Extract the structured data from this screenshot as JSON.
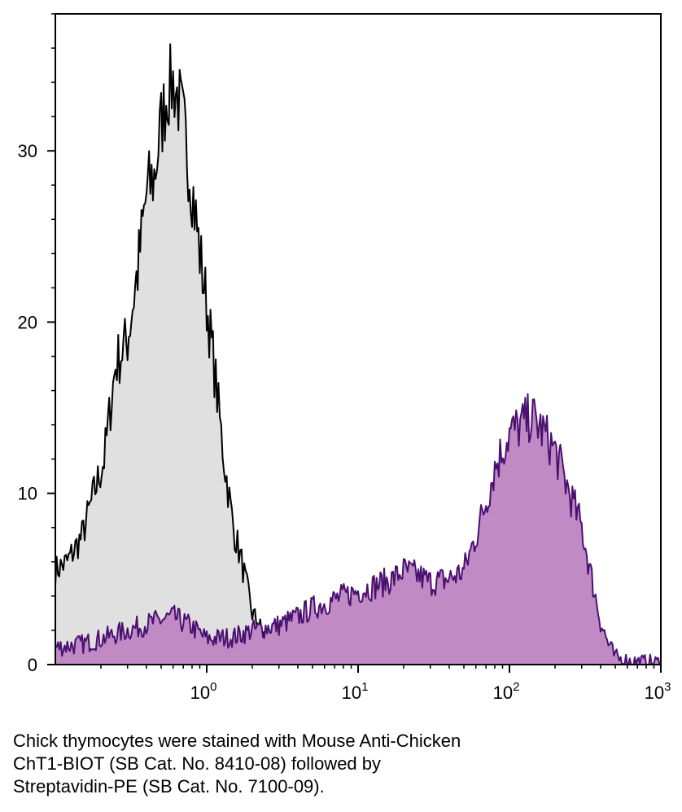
{
  "chart_data": {
    "type": "area",
    "title": "",
    "xlabel": "",
    "ylabel": "",
    "x_scale": "log",
    "xlim": [
      0.1,
      1000
    ],
    "ylim": [
      0,
      38
    ],
    "grid": false,
    "x_ticks": [
      {
        "value": 1,
        "base": "10",
        "exp": "0"
      },
      {
        "value": 10,
        "base": "10",
        "exp": "1"
      },
      {
        "value": 100,
        "base": "10",
        "exp": "2"
      },
      {
        "value": 1000,
        "base": "10",
        "exp": "3"
      }
    ],
    "y_ticks": [
      {
        "value": 0,
        "label": "0"
      },
      {
        "value": 10,
        "label": "10"
      },
      {
        "value": 20,
        "label": "20"
      },
      {
        "value": 30,
        "label": "30"
      }
    ],
    "series": [
      {
        "fill": "#e0e0e0",
        "stroke": "#000000",
        "x": [
          0.1,
          0.12,
          0.15,
          0.18,
          0.21,
          0.25,
          0.3,
          0.35,
          0.4,
          0.45,
          0.5,
          0.55,
          0.6,
          0.65,
          0.7,
          0.8,
          0.9,
          1.0,
          1.1,
          1.3,
          1.5,
          1.7,
          2.0,
          2.3,
          2.7,
          3.0,
          3.5,
          4.0
        ],
        "y": [
          5.5,
          6.0,
          7.5,
          10.0,
          12.0,
          17.5,
          19.0,
          23.0,
          27.5,
          28.5,
          31.5,
          33.5,
          34.0,
          33.0,
          31.5,
          28.0,
          24.0,
          21.0,
          18.0,
          12.0,
          8.0,
          6.0,
          3.0,
          2.0,
          1.0,
          0.5,
          0.2,
          0.0
        ]
      },
      {
        "fill": "#c08bc5",
        "stroke": "#4a1070",
        "x": [
          0.1,
          0.15,
          0.2,
          0.3,
          0.45,
          0.6,
          0.8,
          1.0,
          1.5,
          2.0,
          3.0,
          4.0,
          5.0,
          7.0,
          10.0,
          13.0,
          17.0,
          20.0,
          25.0,
          30.0,
          40.0,
          50.0,
          60.0,
          70.0,
          80.0,
          100.0,
          120.0,
          140.0,
          170.0,
          200.0,
          250.0,
          300.0,
          350.0,
          400.0,
          450.0,
          500.0,
          600.0,
          800.0,
          1000.0
        ],
        "y": [
          1.0,
          1.2,
          1.5,
          2.0,
          2.5,
          2.8,
          2.2,
          1.5,
          1.6,
          2.0,
          2.3,
          2.8,
          3.3,
          3.8,
          4.3,
          4.6,
          5.0,
          5.5,
          5.2,
          4.8,
          5.0,
          5.5,
          7.5,
          9.5,
          11.5,
          13.5,
          14.0,
          14.5,
          13.5,
          12.5,
          10.0,
          8.0,
          5.0,
          2.5,
          1.2,
          0.4,
          0.2,
          0.1,
          0.1
        ]
      }
    ]
  },
  "caption": {
    "line1": "Chick thymocytes were stained with Mouse Anti-Chicken",
    "line2": "ChT1-BIOT (SB Cat. No. 8410-08) followed by",
    "line3": "Streptavidin-PE (SB Cat. No. 7100-09)."
  }
}
